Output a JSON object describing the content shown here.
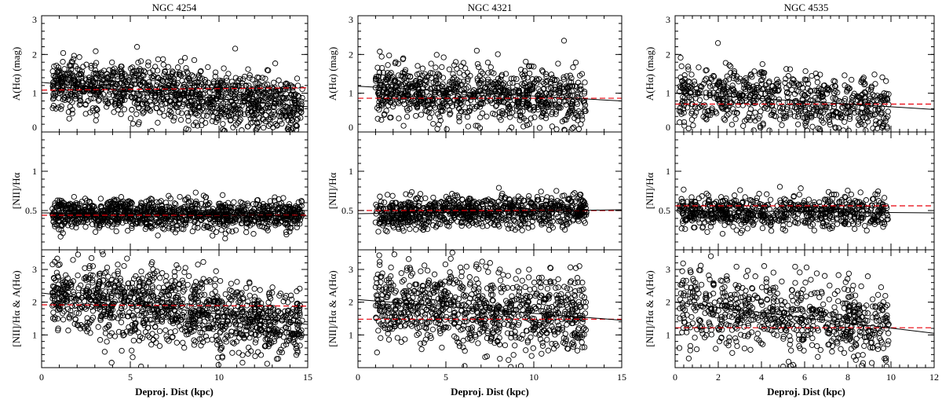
{
  "chart_data": [
    {
      "type": "scatter",
      "title": "NGC 4254",
      "xlabel": "Deproj. Dist  (kpc)",
      "xlim": [
        0,
        15
      ],
      "xticks": [
        0,
        5,
        10,
        15
      ],
      "x_range_of_points": [
        0.6,
        14.7
      ],
      "panels": [
        {
          "ylabel": "A(Hα)   (mag)",
          "ylim": [
            0,
            3
          ],
          "yticks": [
            0,
            1,
            2,
            3
          ],
          "points": {
            "count": 1200,
            "center": 0.95,
            "spread": 0.35
          },
          "fit_line": {
            "x": [
              0,
              15
            ],
            "y": [
              1.28,
              0.65
            ]
          },
          "mean_line": {
            "x": [
              0,
              15
            ],
            "y": [
              1.08,
              1.14
            ]
          }
        },
        {
          "ylabel": "[NII]/Hα",
          "ylim": [
            0,
            1.5
          ],
          "yticks": [
            0.5,
            1
          ],
          "points": {
            "count": 1200,
            "center": 0.45,
            "spread": 0.09
          },
          "fit_line": {
            "x": [
              0,
              15
            ],
            "y": [
              0.47,
              0.43
            ]
          },
          "mean_line": {
            "x": [
              0,
              15
            ],
            "y": [
              0.44,
              0.44
            ]
          }
        },
        {
          "ylabel": "[NII]/Hα & A(Hα)",
          "ylim": [
            0,
            3.6
          ],
          "yticks": [
            1,
            2,
            3
          ],
          "points": {
            "count": 1200,
            "center": 1.75,
            "spread": 0.55
          },
          "fit_line": {
            "x": [
              0,
              15
            ],
            "y": [
              2.28,
              1.32
            ]
          },
          "mean_line": {
            "x": [
              0,
              15
            ],
            "y": [
              1.92,
              1.88
            ]
          }
        }
      ]
    },
    {
      "type": "scatter",
      "title": "NGC 4321",
      "xlabel": "Deproj. Dist  (kpc)",
      "xlim": [
        0,
        15
      ],
      "xticks": [
        0,
        5,
        10,
        15
      ],
      "x_range_of_points": [
        1.0,
        13.0
      ],
      "panels": [
        {
          "ylabel": "A(Hα)   (mag)",
          "ylim": [
            0,
            3
          ],
          "yticks": [
            0,
            1,
            2,
            3
          ],
          "points": {
            "count": 900,
            "center": 0.9,
            "spread": 0.35
          },
          "fit_line": {
            "x": [
              0,
              15
            ],
            "y": [
              1.18,
              0.8
            ]
          },
          "mean_line": {
            "x": [
              0,
              15
            ],
            "y": [
              0.87,
              0.87
            ]
          }
        },
        {
          "ylabel": "[NII]/Hα",
          "ylim": [
            0,
            1.5
          ],
          "yticks": [
            0.5,
            1
          ],
          "points": {
            "count": 900,
            "center": 0.48,
            "spread": 0.1
          },
          "fit_line": {
            "x": [
              0,
              15
            ],
            "y": [
              0.46,
              0.51
            ]
          },
          "mean_line": {
            "x": [
              0,
              15
            ],
            "y": [
              0.5,
              0.5
            ]
          }
        },
        {
          "ylabel": "[NII]/Hα & A(Hα)",
          "ylim": [
            0,
            3.6
          ],
          "yticks": [
            1,
            2,
            3
          ],
          "points": {
            "count": 900,
            "center": 1.7,
            "spread": 0.6
          },
          "fit_line": {
            "x": [
              0,
              15
            ],
            "y": [
              2.08,
              1.45
            ]
          },
          "mean_line": {
            "x": [
              0,
              15
            ],
            "y": [
              1.48,
              1.48
            ]
          }
        }
      ]
    },
    {
      "type": "scatter",
      "title": "NGC 4535",
      "xlabel": "Deproj. Dist  (kpc)",
      "xlim": [
        0,
        12
      ],
      "xticks": [
        0,
        2,
        4,
        6,
        8,
        10,
        12
      ],
      "x_range_of_points": [
        0.2,
        9.9
      ],
      "panels": [
        {
          "ylabel": "A(Hα)   (mag)",
          "ylim": [
            0,
            3
          ],
          "yticks": [
            0,
            1,
            2,
            3
          ],
          "points": {
            "count": 700,
            "center": 0.8,
            "spread": 0.38
          },
          "fit_line": {
            "x": [
              0,
              12
            ],
            "y": [
              1.0,
              0.58
            ]
          },
          "mean_line": {
            "x": [
              0,
              12
            ],
            "y": [
              0.72,
              0.72
            ]
          }
        },
        {
          "ylabel": "[NII]/Hα",
          "ylim": [
            0,
            1.5
          ],
          "yticks": [
            0.5,
            1
          ],
          "points": {
            "count": 700,
            "center": 0.47,
            "spread": 0.1
          },
          "fit_line": {
            "x": [
              0,
              12
            ],
            "y": [
              0.5,
              0.47
            ]
          },
          "mean_line": {
            "x": [
              0,
              12
            ],
            "y": [
              0.56,
              0.56
            ]
          }
        },
        {
          "ylabel": "[NII]/Hα & A(Hα)",
          "ylim": [
            0,
            3.6
          ],
          "yticks": [
            1,
            2,
            3
          ],
          "points": {
            "count": 700,
            "center": 1.5,
            "spread": 0.55
          },
          "fit_line": {
            "x": [
              0,
              12
            ],
            "y": [
              2.0,
              1.05
            ]
          },
          "mean_line": {
            "x": [
              0,
              12
            ],
            "y": [
              1.22,
              1.22
            ]
          }
        }
      ]
    }
  ]
}
